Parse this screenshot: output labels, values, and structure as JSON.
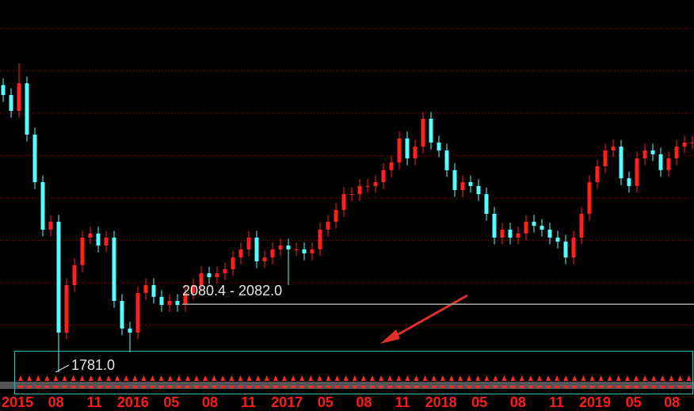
{
  "chart_data": {
    "type": "candlestick",
    "x_labels": [
      "2015",
      "08",
      "11",
      "2016",
      "05",
      "08",
      "11",
      "2017",
      "05",
      "08",
      "11",
      "2018",
      "05",
      "08",
      "11",
      "2019",
      "05",
      "08"
    ],
    "open": [
      3050,
      3006,
      2936,
      3058,
      2831,
      2621,
      2411,
      2446,
      1956,
      2166,
      2254,
      2376,
      2394,
      2341,
      2376,
      2096,
      1974,
      1956,
      2131,
      2166,
      2114,
      2078,
      2096,
      2078,
      2131,
      2166,
      2218,
      2201,
      2218,
      2236,
      2288,
      2324,
      2376,
      2271,
      2288,
      2324,
      2341,
      2324,
      2324,
      2306,
      2324,
      2411,
      2446,
      2498,
      2568,
      2568,
      2604,
      2604,
      2621,
      2674,
      2708,
      2814,
      2726,
      2778,
      2901,
      2796,
      2761,
      2674,
      2586,
      2621,
      2604,
      2568,
      2481,
      2376,
      2411,
      2376,
      2394,
      2446,
      2428,
      2411,
      2376,
      2358,
      2288,
      2376,
      2481,
      2621,
      2691,
      2761,
      2778,
      2638,
      2604,
      2726,
      2761,
      2744,
      2674,
      2726,
      2778,
      2796
    ],
    "high": [
      3080,
      3036,
      3146,
      3088,
      2861,
      2651,
      2476,
      2476,
      2196,
      2284,
      2406,
      2424,
      2424,
      2406,
      2406,
      2126,
      2004,
      2161,
      2196,
      2196,
      2144,
      2126,
      2126,
      2161,
      2196,
      2248,
      2248,
      2248,
      2266,
      2318,
      2354,
      2406,
      2406,
      2318,
      2354,
      2371,
      2371,
      2354,
      2354,
      2354,
      2441,
      2476,
      2528,
      2598,
      2598,
      2634,
      2634,
      2651,
      2704,
      2738,
      2844,
      2844,
      2808,
      2931,
      2931,
      2826,
      2791,
      2704,
      2651,
      2651,
      2634,
      2598,
      2511,
      2441,
      2441,
      2424,
      2476,
      2476,
      2458,
      2441,
      2406,
      2388,
      2406,
      2511,
      2651,
      2721,
      2791,
      2808,
      2808,
      2668,
      2756,
      2791,
      2791,
      2774,
      2756,
      2808,
      2826,
      2826
    ],
    "low": [
      2976,
      2906,
      2906,
      2801,
      2591,
      2381,
      2381,
      1781,
      1926,
      2136,
      2224,
      2346,
      2311,
      2311,
      2066,
      1944,
      1870,
      1926,
      2101,
      2084,
      2048,
      2048,
      2048,
      2048,
      2101,
      2136,
      2171,
      2171,
      2188,
      2206,
      2258,
      2294,
      2241,
      2241,
      2258,
      2294,
      2166,
      2294,
      2276,
      2276,
      2294,
      2381,
      2416,
      2468,
      2538,
      2538,
      2574,
      2574,
      2591,
      2644,
      2678,
      2696,
      2696,
      2748,
      2766,
      2731,
      2644,
      2556,
      2556,
      2574,
      2538,
      2451,
      2346,
      2346,
      2346,
      2346,
      2364,
      2398,
      2381,
      2346,
      2328,
      2258,
      2258,
      2346,
      2451,
      2591,
      2661,
      2731,
      2608,
      2574,
      2574,
      2696,
      2714,
      2644,
      2644,
      2696,
      2748,
      2766
    ],
    "close": [
      3006,
      2936,
      3058,
      2831,
      2621,
      2411,
      2446,
      1956,
      2166,
      2254,
      2376,
      2394,
      2341,
      2376,
      2096,
      1974,
      1956,
      2131,
      2166,
      2114,
      2078,
      2096,
      2078,
      2131,
      2166,
      2218,
      2201,
      2218,
      2236,
      2288,
      2324,
      2376,
      2271,
      2288,
      2324,
      2341,
      2324,
      2324,
      2306,
      2324,
      2411,
      2446,
      2498,
      2568,
      2568,
      2604,
      2604,
      2621,
      2674,
      2708,
      2814,
      2726,
      2778,
      2901,
      2796,
      2761,
      2674,
      2586,
      2621,
      2604,
      2568,
      2481,
      2376,
      2411,
      2376,
      2394,
      2446,
      2428,
      2411,
      2376,
      2358,
      2288,
      2376,
      2481,
      2621,
      2691,
      2761,
      2778,
      2638,
      2604,
      2726,
      2761,
      2744,
      2674,
      2726,
      2778,
      2796,
      2796
    ],
    "up_color": "#ff2020",
    "down_color": "#54ffff",
    "ylim": [
      1693.5,
      3426
    ],
    "range_band": {
      "values": [
        2080.4,
        2082.0
      ],
      "label": "2080.4 - 2082.0"
    },
    "low_marker": {
      "value": 1781,
      "label": "1781.0"
    }
  }
}
